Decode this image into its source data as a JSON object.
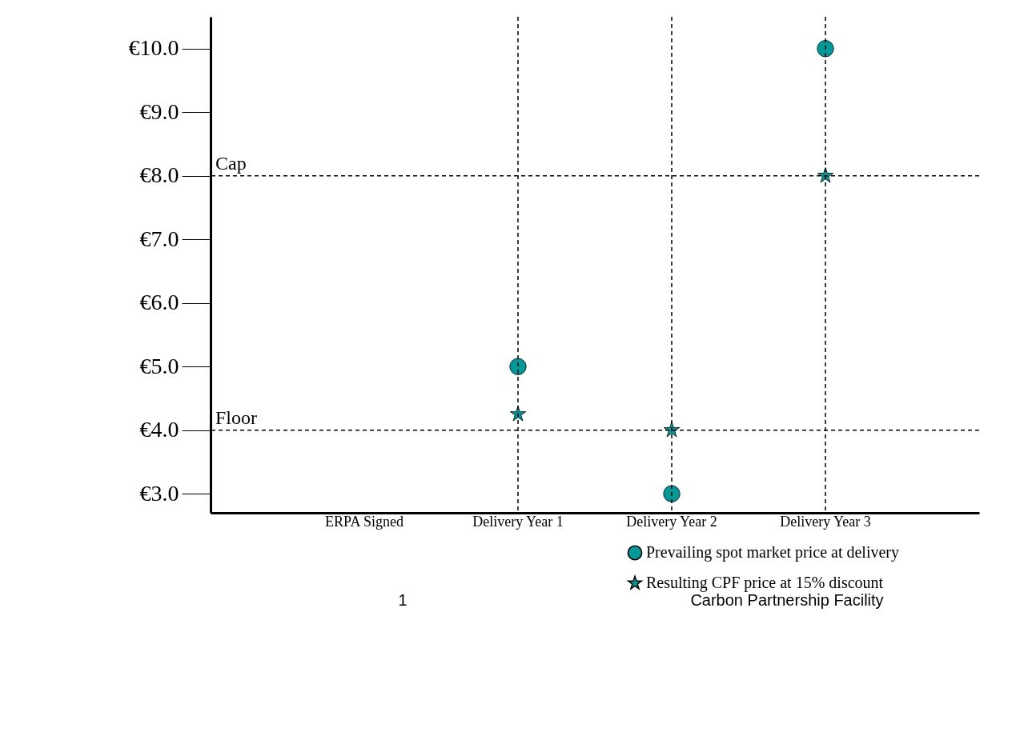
{
  "chart_data": {
    "type": "scatter",
    "categories": [
      "ERPA Signed",
      "Delivery Year 1",
      "Delivery Year 2",
      "Delivery Year 3"
    ],
    "series": [
      {
        "name": "Prevailing spot market price at delivery",
        "color": "#009999",
        "marker": "circle",
        "values": [
          null,
          5.0,
          3.0,
          10.0
        ]
      },
      {
        "name": "Resulting CPF price at 15% discount",
        "color": "#009999",
        "marker": "star",
        "values": [
          null,
          4.25,
          4.0,
          8.0
        ]
      }
    ],
    "ylim": [
      2.7,
      10.5
    ],
    "yticks": [
      {
        "value": 3,
        "label": "€3.0"
      },
      {
        "value": 4,
        "label": "€4.0"
      },
      {
        "value": 5,
        "label": "€5.0"
      },
      {
        "value": 6,
        "label": "€6.0"
      },
      {
        "value": 7,
        "label": "€7.0"
      },
      {
        "value": 8,
        "label": "€8.0"
      },
      {
        "value": 9,
        "label": "€9.0"
      },
      {
        "value": 10,
        "label": "€10.0"
      }
    ],
    "ref_lines": [
      {
        "axis": "y",
        "value": 8,
        "label": "Cap",
        "line_style": "dashed",
        "color": "#000000"
      },
      {
        "axis": "y",
        "value": 4,
        "label": "Floor",
        "line_style": "dashed",
        "color": "#000000"
      },
      {
        "axis": "x",
        "value": "Delivery Year 1",
        "label": null,
        "line_style": "dashed",
        "color": "#000000"
      },
      {
        "axis": "x",
        "value": "Delivery Year 2",
        "label": null,
        "line_style": "dashed",
        "color": "#000000"
      },
      {
        "axis": "x",
        "value": "Delivery Year 3",
        "label": null,
        "line_style": "dashed",
        "color": "#000000"
      }
    ],
    "legend": "bottom right",
    "annotations": [
      "1",
      "Carbon Partnership Facility"
    ]
  }
}
